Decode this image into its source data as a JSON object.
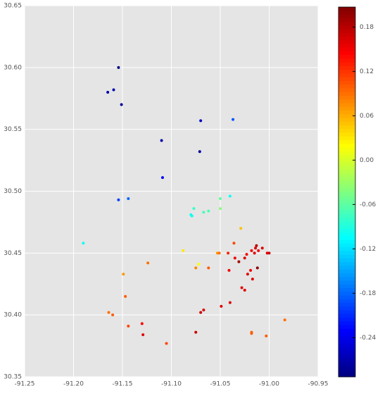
{
  "chart_data": {
    "type": "scatter",
    "x": [
      -91.154,
      -91.159,
      -91.165,
      -91.151,
      -91.11,
      -91.07,
      -91.037,
      -91.071,
      -91.109,
      -91.154,
      -91.144,
      -91.19,
      -91.04,
      -91.077,
      -91.08,
      -91.079,
      -91.067,
      -91.062,
      -91.05,
      -91.05,
      -91.029,
      -91.053,
      -91.051,
      -91.088,
      -91.072,
      -91.075,
      -91.062,
      -91.124,
      -91.149,
      -91.147,
      -91.164,
      -91.16,
      -91.144,
      -91.13,
      -91.129,
      -91.105,
      -91.075,
      -91.07,
      -91.067,
      -91.049,
      -91.04,
      -91.036,
      -91.042,
      -91.035,
      -91.041,
      -91.031,
      -91.025,
      -91.023,
      -91.022,
      -91.019,
      -91.028,
      -91.025,
      -91.018,
      -91.015,
      -91.014,
      -91.013,
      -91.011,
      -91.012,
      -91.017,
      -91.007,
      -91.002,
      -91.0,
      -91.018,
      -91.018,
      -91.003,
      -90.984
    ],
    "values": [
      30.6,
      30.582,
      30.58,
      30.57,
      30.541,
      30.557,
      30.558,
      30.532,
      30.511,
      30.493,
      30.494,
      30.458,
      30.496,
      30.486,
      30.481,
      30.48,
      30.483,
      30.484,
      30.494,
      30.486,
      30.47,
      30.45,
      30.45,
      30.452,
      30.441,
      30.438,
      30.438,
      30.442,
      30.433,
      30.415,
      30.402,
      30.4,
      30.391,
      30.393,
      30.384,
      30.377,
      30.386,
      30.402,
      30.404,
      30.407,
      30.41,
      30.458,
      30.45,
      30.446,
      30.436,
      30.443,
      30.446,
      30.449,
      30.433,
      30.436,
      30.422,
      30.42,
      30.452,
      30.45,
      30.454,
      30.456,
      30.452,
      30.438,
      30.429,
      30.454,
      30.45,
      30.45,
      30.386,
      30.385,
      30.383,
      30.396
    ],
    "color_values": [
      -0.29,
      -0.27,
      -0.27,
      -0.28,
      -0.27,
      -0.26,
      -0.19,
      -0.28,
      -0.23,
      -0.2,
      -0.18,
      -0.1,
      -0.1,
      -0.08,
      -0.1,
      -0.1,
      -0.07,
      -0.07,
      -0.06,
      -0.04,
      0.05,
      0.07,
      0.09,
      0.03,
      0.02,
      0.08,
      0.1,
      0.09,
      0.07,
      0.1,
      0.09,
      0.1,
      0.11,
      0.15,
      0.16,
      0.11,
      0.17,
      0.17,
      0.16,
      0.16,
      0.16,
      0.11,
      0.13,
      0.15,
      0.15,
      0.19,
      0.16,
      0.15,
      0.16,
      0.15,
      0.16,
      0.16,
      0.15,
      0.16,
      0.16,
      0.18,
      0.15,
      0.2,
      0.16,
      0.16,
      0.16,
      0.17,
      0.1,
      0.1,
      0.1,
      0.09
    ],
    "colormap": "jet",
    "xlim": [
      -91.25,
      -90.95
    ],
    "xticks": [
      -91.25,
      {
        "value": -91.2,
        "label": "-91.20"
      },
      -91.15,
      {
        "value": -91.1,
        "label": "-91.10"
      },
      -91.05,
      {
        "value": -91.0,
        "label": "-91.00"
      },
      -90.95
    ],
    "ylim": [
      30.35,
      30.65
    ],
    "yticks": [
      30.35,
      {
        "value": 30.4,
        "label": "30.40"
      },
      30.45,
      {
        "value": 30.5,
        "label": "30.50"
      },
      30.55,
      {
        "value": 30.6,
        "label": "30.60"
      },
      30.65
    ],
    "clim": [
      -0.293,
      0.207
    ],
    "cticks": [
      -0.24,
      -0.18,
      -0.12,
      -0.06,
      {
        "value": 0,
        "label": "0.00"
      },
      0.06,
      0.12,
      0.18
    ],
    "grid": true
  }
}
